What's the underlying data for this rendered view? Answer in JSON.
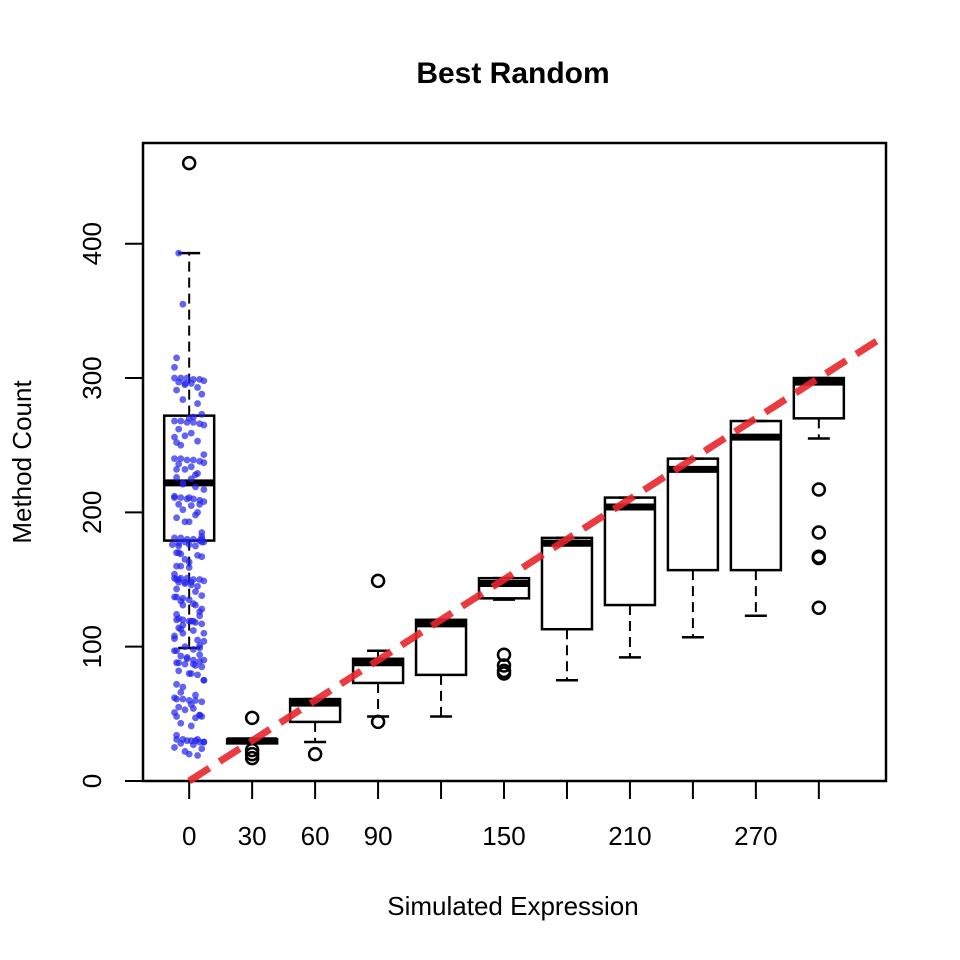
{
  "chart_data": {
    "type": "boxplot",
    "title": "Best Random",
    "xlabel": "Simulated Expression",
    "ylabel": "Method Count",
    "xlim": [
      -22,
      332
    ],
    "ylim": [
      0,
      475
    ],
    "x_ticks": [
      0,
      30,
      60,
      90,
      120,
      150,
      180,
      210,
      240,
      270,
      300
    ],
    "x_tick_labels": [
      "0",
      "30",
      "60",
      "90",
      "",
      "150",
      "",
      "210",
      "",
      "270",
      ""
    ],
    "y_ticks": [
      0,
      100,
      200,
      300,
      400
    ],
    "y_tick_labels": [
      "0",
      "100",
      "200",
      "300",
      "400"
    ],
    "grid": false,
    "reference_line": {
      "label": "",
      "intercept": 0,
      "slope": 1,
      "color": "#e8262b",
      "style": "dashed"
    },
    "colors": {
      "points": "#2222ee",
      "boxes": "#000000"
    },
    "boxes": [
      {
        "x": 0,
        "q1": 179,
        "median": 222,
        "q3": 272,
        "whisker_low": 99,
        "whisker_high": 393,
        "outliers": [
          460
        ]
      },
      {
        "x": 30,
        "q1": 28,
        "median": 30,
        "q3": 31,
        "whisker_low": 28,
        "whisker_high": 31,
        "outliers": [
          47,
          23,
          20,
          17
        ]
      },
      {
        "x": 60,
        "q1": 44,
        "median": 58,
        "q3": 61,
        "whisker_low": 29,
        "whisker_high": 61,
        "outliers": [
          20
        ]
      },
      {
        "x": 90,
        "q1": 73,
        "median": 88,
        "q3": 91,
        "whisker_low": 48,
        "whisker_high": 97,
        "outliers": [
          149,
          44
        ]
      },
      {
        "x": 120,
        "q1": 79,
        "median": 117,
        "q3": 120,
        "whisker_low": 48,
        "whisker_high": 120,
        "outliers": []
      },
      {
        "x": 150,
        "q1": 136,
        "median": 147,
        "q3": 151,
        "whisker_low": 135,
        "whisker_high": 151,
        "outliers": [
          94,
          86,
          82,
          80
        ]
      },
      {
        "x": 180,
        "q1": 113,
        "median": 177,
        "q3": 181,
        "whisker_low": 75,
        "whisker_high": 181,
        "outliers": []
      },
      {
        "x": 210,
        "q1": 131,
        "median": 204,
        "q3": 211,
        "whisker_low": 92,
        "whisker_high": 211,
        "outliers": []
      },
      {
        "x": 240,
        "q1": 157,
        "median": 232,
        "q3": 240,
        "whisker_low": 107,
        "whisker_high": 240,
        "outliers": []
      },
      {
        "x": 270,
        "q1": 157,
        "median": 256,
        "q3": 268,
        "whisker_low": 123,
        "whisker_high": 268,
        "outliers": []
      },
      {
        "x": 300,
        "q1": 270,
        "median": 297,
        "q3": 300,
        "whisker_low": 255,
        "whisker_high": 300,
        "outliers": [
          217,
          185,
          167,
          166,
          129
        ]
      }
    ],
    "points": [
      [
        -5,
        393
      ],
      [
        -3,
        355
      ],
      [
        -6,
        315
      ],
      [
        -7,
        308
      ],
      [
        -2,
        296
      ],
      [
        4,
        281
      ],
      [
        6,
        273
      ],
      [
        2,
        271
      ],
      [
        -4,
        250
      ],
      [
        7,
        243
      ],
      [
        -6,
        232
      ],
      [
        1,
        225
      ],
      [
        -3,
        222
      ],
      [
        3,
        219
      ],
      [
        -7,
        212
      ],
      [
        5,
        206
      ],
      [
        -2,
        193
      ],
      [
        0,
        193
      ],
      [
        6,
        180
      ],
      [
        -8,
        176
      ],
      [
        -5,
        170
      ],
      [
        -6,
        160
      ],
      [
        -7,
        154
      ],
      [
        1,
        119
      ],
      [
        5,
        99
      ],
      [
        -6,
        31
      ],
      [
        -3,
        31
      ],
      [
        -1,
        30
      ],
      [
        1,
        30
      ],
      [
        3,
        30
      ],
      [
        5,
        29
      ],
      [
        7,
        29
      ],
      [
        -4,
        28
      ],
      [
        2,
        27
      ],
      [
        -7,
        25
      ],
      [
        6,
        24
      ],
      [
        -2,
        22
      ],
      [
        0,
        20
      ],
      [
        4,
        19
      ],
      [
        -6,
        61
      ],
      [
        -3,
        61
      ],
      [
        0,
        60
      ],
      [
        3,
        60
      ],
      [
        6,
        59
      ],
      [
        -5,
        55
      ],
      [
        2,
        54
      ],
      [
        -7,
        51
      ],
      [
        5,
        49
      ],
      [
        -4,
        43
      ],
      [
        1,
        41
      ],
      [
        -6,
        34
      ],
      [
        4,
        31
      ],
      [
        7,
        29
      ],
      [
        -7,
        97
      ],
      [
        -4,
        93
      ],
      [
        -1,
        91
      ],
      [
        2,
        90
      ],
      [
        5,
        89
      ],
      [
        -6,
        88
      ],
      [
        -2,
        87
      ],
      [
        3,
        86
      ],
      [
        6,
        85
      ],
      [
        -5,
        82
      ],
      [
        0,
        80
      ],
      [
        4,
        79
      ],
      [
        7,
        75
      ],
      [
        -3,
        70
      ],
      [
        1,
        57
      ],
      [
        -2,
        53
      ],
      [
        5,
        49
      ],
      [
        -6,
        48
      ],
      [
        3,
        47
      ],
      [
        -6,
        120
      ],
      [
        -3,
        120
      ],
      [
        0,
        119
      ],
      [
        3,
        118
      ],
      [
        6,
        117
      ],
      [
        -5,
        114
      ],
      [
        2,
        112
      ],
      [
        7,
        110
      ],
      [
        -7,
        106
      ],
      [
        4,
        105
      ],
      [
        -2,
        100
      ],
      [
        1,
        80
      ],
      [
        -6,
        72
      ],
      [
        -4,
        66
      ],
      [
        -7,
        62
      ],
      [
        3,
        64
      ],
      [
        6,
        48
      ],
      [
        -7,
        151
      ],
      [
        -4,
        151
      ],
      [
        -1,
        151
      ],
      [
        2,
        150
      ],
      [
        5,
        150
      ],
      [
        7,
        149
      ],
      [
        -5,
        148
      ],
      [
        -2,
        147
      ],
      [
        1,
        146
      ],
      [
        4,
        145
      ],
      [
        -6,
        143
      ],
      [
        3,
        141
      ],
      [
        6,
        138
      ],
      [
        -3,
        136
      ],
      [
        0,
        135
      ],
      [
        5,
        94
      ],
      [
        7,
        90
      ],
      [
        -7,
        181
      ],
      [
        -4,
        181
      ],
      [
        -1,
        180
      ],
      [
        2,
        180
      ],
      [
        5,
        179
      ],
      [
        7,
        178
      ],
      [
        -5,
        177
      ],
      [
        0,
        176
      ],
      [
        3,
        175
      ],
      [
        -6,
        170
      ],
      [
        4,
        168
      ],
      [
        -2,
        165
      ],
      [
        1,
        148
      ],
      [
        6,
        128
      ],
      [
        -4,
        113
      ],
      [
        -3,
        110
      ],
      [
        5,
        101
      ],
      [
        -6,
        97
      ],
      [
        -5,
        88
      ],
      [
        2,
        87
      ],
      [
        7,
        75
      ],
      [
        -7,
        211
      ],
      [
        -4,
        211
      ],
      [
        -1,
        210
      ],
      [
        2,
        210
      ],
      [
        5,
        209
      ],
      [
        7,
        208
      ],
      [
        -5,
        206
      ],
      [
        1,
        205
      ],
      [
        -3,
        202
      ],
      [
        4,
        200
      ],
      [
        -6,
        196
      ],
      [
        6,
        185
      ],
      [
        -2,
        178
      ],
      [
        0,
        163
      ],
      [
        -5,
        150
      ],
      [
        -4,
        134
      ],
      [
        3,
        131
      ],
      [
        -6,
        124
      ],
      [
        -3,
        116
      ],
      [
        7,
        104
      ],
      [
        2,
        98
      ],
      [
        -1,
        92
      ],
      [
        -7,
        240
      ],
      [
        -4,
        240
      ],
      [
        -1,
        239
      ],
      [
        2,
        239
      ],
      [
        5,
        238
      ],
      [
        7,
        237
      ],
      [
        -5,
        236
      ],
      [
        1,
        234
      ],
      [
        -2,
        232
      ],
      [
        4,
        229
      ],
      [
        -6,
        226
      ],
      [
        3,
        198
      ],
      [
        6,
        182
      ],
      [
        -4,
        169
      ],
      [
        0,
        159
      ],
      [
        -6,
        137
      ],
      [
        -3,
        131
      ],
      [
        5,
        126
      ],
      [
        -5,
        121
      ],
      [
        2,
        119
      ],
      [
        -7,
        108
      ],
      [
        -7,
        268
      ],
      [
        -4,
        268
      ],
      [
        -1,
        267
      ],
      [
        2,
        267
      ],
      [
        5,
        266
      ],
      [
        7,
        265
      ],
      [
        -5,
        262
      ],
      [
        1,
        259
      ],
      [
        -2,
        257
      ],
      [
        4,
        253
      ],
      [
        -6,
        252
      ],
      [
        3,
        228
      ],
      [
        -3,
        221
      ],
      [
        0,
        211
      ],
      [
        6,
        178
      ],
      [
        -5,
        175
      ],
      [
        -4,
        160
      ],
      [
        -6,
        150
      ],
      [
        -2,
        148
      ],
      [
        -7,
        137
      ],
      [
        2,
        132
      ],
      [
        5,
        123
      ],
      [
        -7,
        300
      ],
      [
        -4,
        300
      ],
      [
        -1,
        300
      ],
      [
        2,
        299
      ],
      [
        5,
        299
      ],
      [
        7,
        298
      ],
      [
        -5,
        297
      ],
      [
        1,
        296
      ],
      [
        -2,
        295
      ],
      [
        4,
        293
      ],
      [
        -6,
        291
      ],
      [
        6,
        288
      ],
      [
        -3,
        284
      ],
      [
        0,
        270
      ],
      [
        -7,
        256
      ],
      [
        7,
        217
      ],
      [
        6,
        167
      ]
    ]
  }
}
